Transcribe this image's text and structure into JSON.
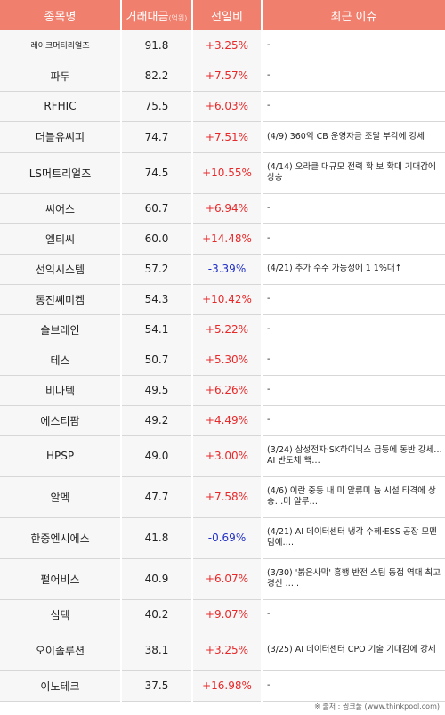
{
  "header": {
    "col_name": "종목명",
    "col_volume": "거래대금",
    "col_volume_unit": "(억원)",
    "col_change": "전일비",
    "col_issue": "최근 이슈"
  },
  "rows": [
    {
      "name": "레이크머티리얼즈",
      "volume": "91.8",
      "change": "+3.25%",
      "dir": "up",
      "issue": "-"
    },
    {
      "name": "파두",
      "volume": "82.2",
      "change": "+7.57%",
      "dir": "up",
      "issue": "-"
    },
    {
      "name": "RFHIC",
      "volume": "75.5",
      "change": "+6.03%",
      "dir": "up",
      "issue": "-"
    },
    {
      "name": "더블유씨피",
      "volume": "74.7",
      "change": "+7.51%",
      "dir": "up",
      "issue": "(4/9) 360억 CB 운영자금 조달 부각에 강세"
    },
    {
      "name": "LS머트리얼즈",
      "volume": "74.5",
      "change": "+10.55%",
      "dir": "up",
      "issue": "(4/14) 오라클 대규모 전력 확 보 확대 기대감에 상승"
    },
    {
      "name": "씨어스",
      "volume": "60.7",
      "change": "+6.94%",
      "dir": "up",
      "issue": "-"
    },
    {
      "name": "엘티씨",
      "volume": "60.0",
      "change": "+14.48%",
      "dir": "up",
      "issue": "-"
    },
    {
      "name": "선익시스템",
      "volume": "57.2",
      "change": "-3.39%",
      "dir": "down",
      "issue": "(4/21) 추가 수주 가능성에 1 1%대↑"
    },
    {
      "name": "동진쎄미켐",
      "volume": "54.3",
      "change": "+10.42%",
      "dir": "up",
      "issue": "-"
    },
    {
      "name": "솔브레인",
      "volume": "54.1",
      "change": "+5.22%",
      "dir": "up",
      "issue": "-"
    },
    {
      "name": "테스",
      "volume": "50.7",
      "change": "+5.30%",
      "dir": "up",
      "issue": "-"
    },
    {
      "name": "비나텍",
      "volume": "49.5",
      "change": "+6.26%",
      "dir": "up",
      "issue": "-"
    },
    {
      "name": "에스티팜",
      "volume": "49.2",
      "change": "+4.49%",
      "dir": "up",
      "issue": "-"
    },
    {
      "name": "HPSP",
      "volume": "49.0",
      "change": "+3.00%",
      "dir": "up",
      "issue": "(3/24) 삼성전자·SK하이닉스 급등에 동반 강세…AI 반도체 핵…"
    },
    {
      "name": "알멕",
      "volume": "47.7",
      "change": "+7.58%",
      "dir": "up",
      "issue": "(4/6) 이란 중동 내 미 알류미 늄 시설 타격에 상승…미 알루…"
    },
    {
      "name": "한중엔시에스",
      "volume": "41.8",
      "change": "-0.69%",
      "dir": "down",
      "issue": "(4/21) AI 데이터센터 냉각 수혜·ESS 공장 모멘텀에….."
    },
    {
      "name": "펄어비스",
      "volume": "40.9",
      "change": "+6.07%",
      "dir": "up",
      "issue": "(3/30) '붉은사막' 흥행 반전 스팀 동접 역대 최고 경신 ….."
    },
    {
      "name": "심텍",
      "volume": "40.2",
      "change": "+9.07%",
      "dir": "up",
      "issue": "-"
    },
    {
      "name": "오이솔루션",
      "volume": "38.1",
      "change": "+3.25%",
      "dir": "up",
      "issue": "(3/25) AI 데이터센터 CPO 기술 기대감에 강세"
    },
    {
      "name": "이노테크",
      "volume": "37.5",
      "change": "+16.98%",
      "dir": "up",
      "issue": "-"
    }
  ],
  "footer": "※ 출처 : 씽크풀 (www.thinkpool.com)"
}
